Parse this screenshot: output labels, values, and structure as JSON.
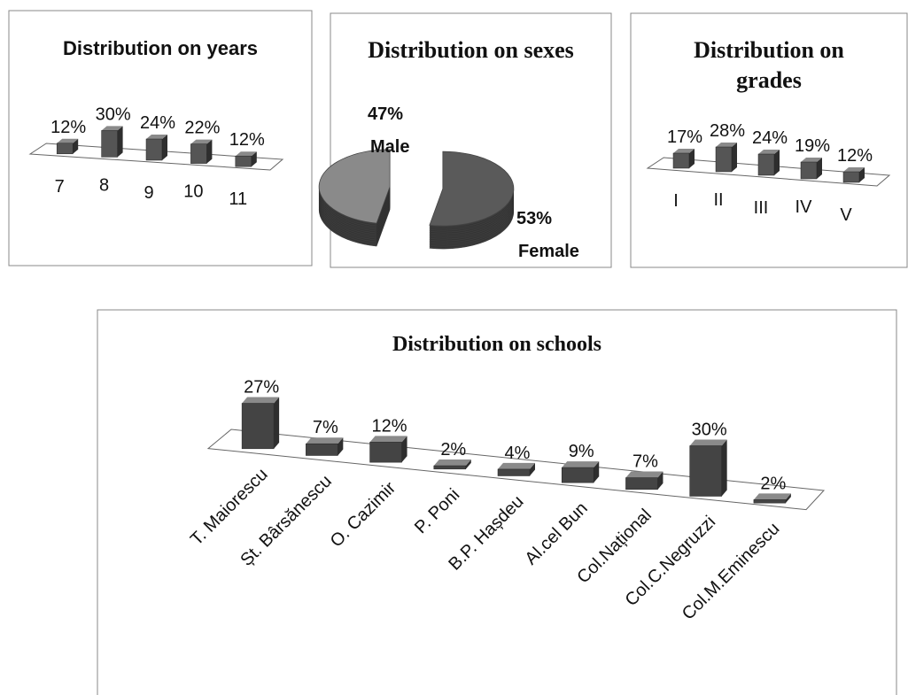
{
  "chart_data": [
    {
      "type": "bar",
      "title": "Distribution on years",
      "categories": [
        "7",
        "8",
        "9",
        "10",
        "11"
      ],
      "values": [
        12,
        30,
        24,
        22,
        12
      ],
      "value_labels": [
        "12%",
        "30%",
        "24%",
        "22%",
        "12%"
      ],
      "color": "#555555"
    },
    {
      "type": "pie",
      "title": "Distribution on sexes",
      "categories": [
        "Male",
        "Female"
      ],
      "values": [
        47,
        53
      ],
      "value_labels": [
        "47%",
        "53%"
      ],
      "colors": [
        "#8a8a8a",
        "#5a5a5a"
      ]
    },
    {
      "type": "bar",
      "title": "Distribution on grades",
      "categories": [
        "I",
        "II",
        "III",
        "IV",
        "V"
      ],
      "values": [
        17,
        28,
        24,
        19,
        12
      ],
      "value_labels": [
        "17%",
        "28%",
        "24%",
        "19%",
        "12%"
      ],
      "color": "#555555"
    },
    {
      "type": "bar",
      "title": "Distribution on schools",
      "categories": [
        "T. Maiorescu",
        "Șt. Bârsănescu",
        "O. Cazimir",
        "P. Poni",
        "B.P. Hașdeu",
        "Al.cel Bun",
        "Col.Național",
        "Col.C.Negruzzi",
        "Col.M.Eminescu"
      ],
      "values": [
        27,
        7,
        12,
        2,
        4,
        9,
        7,
        30,
        2
      ],
      "value_labels": [
        "27%",
        "7%",
        "12%",
        "2%",
        "4%",
        "9%",
        "7%",
        "30%",
        "2%"
      ],
      "color": "#444444"
    }
  ]
}
